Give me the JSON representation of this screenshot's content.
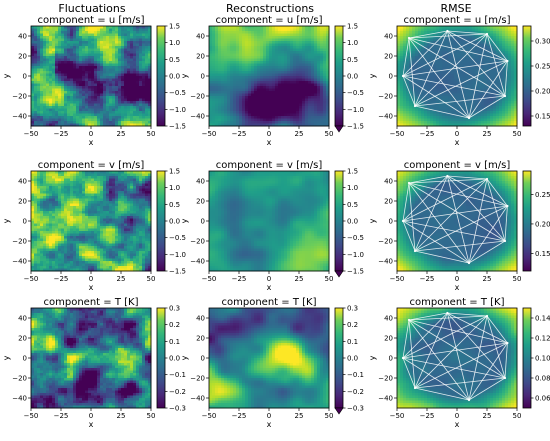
{
  "chart_data": {
    "type": "heatmap",
    "column_titles": [
      "Fluctuations",
      "Reconstructions",
      "RMSE"
    ],
    "xlabel": "x",
    "ylabel": "y",
    "xlim": [
      -50,
      50
    ],
    "ylim": [
      -50,
      50
    ],
    "x_ticks": [
      "−50",
      "−25",
      "0",
      "25",
      "50"
    ],
    "y_ticks": [
      "40",
      "20",
      "0",
      "−20",
      "−40"
    ],
    "colormap": "viridis",
    "rows": [
      {
        "title": "component = u [m/s]",
        "colorbars": [
          {
            "range": [
              -1.5,
              1.5
            ],
            "ticks": [
              "1.5",
              "1.0",
              "0.5",
              "0.0",
              "−0.5",
              "−1.0",
              "−1.5"
            ],
            "extend": false
          },
          {
            "range": [
              -1.5,
              1.5
            ],
            "ticks": [
              "1.5",
              "1.0",
              "0.5",
              "0.0",
              "−0.5",
              "−1.0",
              "−1.5"
            ],
            "extend": true
          },
          {
            "range": [
              0.13,
              0.33
            ],
            "ticks": [
              "0.30",
              "0.25",
              "0.20",
              "0.15"
            ],
            "extend": false
          }
        ]
      },
      {
        "title": "component = v [m/s]",
        "colorbars": [
          {
            "range": [
              -1.5,
              1.5
            ],
            "ticks": [
              "1.5",
              "1.0",
              "0.5",
              "0.0",
              "−0.5",
              "−1.0",
              "−1.5"
            ],
            "extend": false
          },
          {
            "range": [
              -1.5,
              1.5
            ],
            "ticks": [
              "1.5",
              "1.0",
              "0.5",
              "0.0",
              "−0.5",
              "−1.0",
              "−1.5"
            ],
            "extend": true
          },
          {
            "range": [
              0.12,
              0.29
            ],
            "ticks": [
              "0.25",
              "0.20",
              "0.15"
            ],
            "extend": false
          }
        ]
      },
      {
        "title": "component = T [K]",
        "colorbars": [
          {
            "range": [
              -0.3,
              0.3
            ],
            "ticks": [
              "0.3",
              "0.2",
              "0.1",
              "0.0",
              "−0.1",
              "−0.2",
              "−0.3"
            ],
            "extend": false
          },
          {
            "range": [
              -0.3,
              0.3
            ],
            "ticks": [
              "0.3",
              "0.2",
              "0.1",
              "0.0",
              "−0.1",
              "−0.2",
              "−0.3"
            ],
            "extend": true
          },
          {
            "range": [
              0.05,
              0.15
            ],
            "ticks": [
              "0.14",
              "0.12",
              "0.10",
              "0.08",
              "0.06"
            ],
            "extend": false
          }
        ]
      }
    ],
    "sensor_network": {
      "nodes": [
        [
          -40,
          38
        ],
        [
          -8,
          45
        ],
        [
          25,
          42
        ],
        [
          42,
          15
        ],
        [
          40,
          -20
        ],
        [
          10,
          -42
        ],
        [
          -35,
          -30
        ],
        [
          -45,
          0
        ]
      ],
      "edges": "all pairs"
    }
  }
}
